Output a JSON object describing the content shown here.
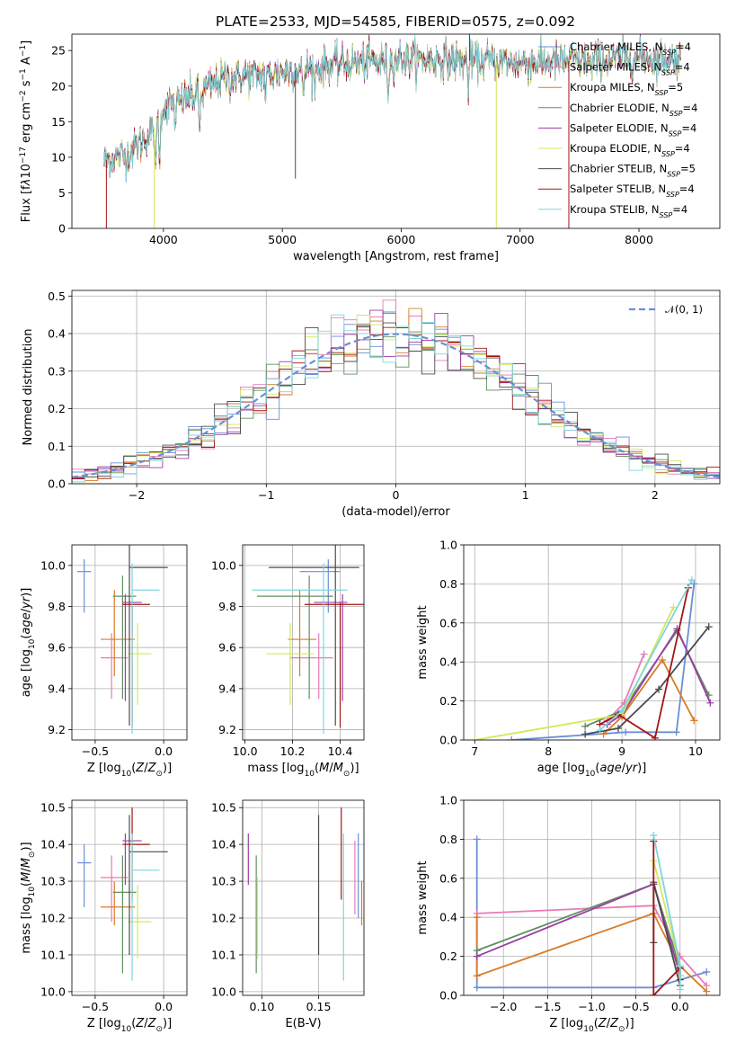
{
  "figure_title": "PLATE=2533, MJD=54585, FIBERID=0575, z=0.092",
  "models": [
    {
      "name": "Chabrier MILES",
      "nssp": "4",
      "color": "#6a8ed8"
    },
    {
      "name": "Salpeter MILES",
      "nssp": "4",
      "color": "#e77bb5"
    },
    {
      "name": "Kroupa MILES",
      "nssp": "5",
      "color": "#d97b28"
    },
    {
      "name": "Chabrier ELODIE",
      "nssp": "4",
      "color": "#5f8f5f"
    },
    {
      "name": "Salpeter ELODIE",
      "nssp": "4",
      "color": "#9b3ea6"
    },
    {
      "name": "Kroupa ELODIE",
      "nssp": "4",
      "color": "#d4e85a"
    },
    {
      "name": "Chabrier STELIB",
      "nssp": "5",
      "color": "#4c4c4c"
    },
    {
      "name": "Salpeter STELIB",
      "nssp": "4",
      "color": "#a31515"
    },
    {
      "name": "Kroupa STELIB",
      "nssp": "4",
      "color": "#7fd6dc"
    }
  ],
  "chart_data": [
    {
      "id": "spectrum",
      "type": "line",
      "xlabel": "wavelength [Angstrom, rest frame]",
      "ylabel_html": "Flux [f<tspan font-style=\"italic\">λ</tspan>10<tspan baseline-shift=\"super\" font-size=\"9\">−17</tspan> erg cm<tspan baseline-shift=\"super\" font-size=\"9\">−2</tspan> s<tspan baseline-shift=\"super\" font-size=\"9\">−1</tspan> A<tspan baseline-shift=\"super\" font-size=\"9\">−1</tspan>]",
      "xlim": [
        3230,
        8680
      ],
      "ylim": [
        0,
        27.3
      ],
      "xticks": [
        4000,
        5000,
        6000,
        7000,
        8000
      ],
      "yticks": [
        0,
        5,
        10,
        15,
        20,
        25
      ],
      "grid": false,
      "legend": "upper right",
      "continuum": [
        [
          3500,
          9.5
        ],
        [
          3700,
          10.5
        ],
        [
          3900,
          13.5
        ],
        [
          4000,
          17.0
        ],
        [
          4300,
          19.0
        ],
        [
          4500,
          21.0
        ],
        [
          5000,
          22.0
        ],
        [
          5500,
          23.2
        ],
        [
          6000,
          23.7
        ],
        [
          6500,
          23.6
        ],
        [
          7000,
          23.3
        ],
        [
          7500,
          23.5
        ],
        [
          8000,
          24.0
        ],
        [
          8350,
          23.8
        ]
      ],
      "absorption_lines": [
        [
          3934,
          7.5
        ],
        [
          3969,
          6.5
        ],
        [
          4102,
          4.0
        ],
        [
          4304,
          5.5
        ],
        [
          4861,
          3.5
        ],
        [
          5175,
          5.0
        ],
        [
          5270,
          3.0
        ],
        [
          5890,
          4.5
        ],
        [
          6563,
          3.5
        ],
        [
          7600,
          2.5
        ]
      ],
      "artifacts": [
        {
          "model": 7,
          "x": 3520,
          "y": 0
        },
        {
          "model": 2,
          "x": 7410,
          "y": 0
        },
        {
          "model": 5,
          "x": 6800,
          "y": 0
        },
        {
          "model": 7,
          "x": 7410,
          "y": 0
        },
        {
          "model": 5,
          "x": 3922,
          "y": 0
        },
        {
          "model": 6,
          "x": 5110,
          "y": 7
        },
        {
          "model": 6,
          "x": 6575,
          "y": 27.3
        }
      ]
    },
    {
      "id": "residuals",
      "type": "histogram",
      "xlabel": "(data-model)/error",
      "ylabel": "Normed distribution",
      "xlim": [
        -2.5,
        2.5
      ],
      "ylim": [
        0,
        0.515
      ],
      "xticks": [
        -2,
        -1,
        0,
        1,
        2
      ],
      "yticks": [
        0.0,
        0.1,
        0.2,
        0.3,
        0.4,
        0.5
      ],
      "grid": true,
      "bin_width": 0.1,
      "normal_curve_label": "𝒩(0, 1)",
      "normal_curve_color": "#6a8ed8",
      "legend": "upper right"
    },
    {
      "id": "age-vs-Z",
      "type": "errorbar",
      "xlabel_html": "Z [log<tspan baseline-shift=\"sub\" font-size=\"9\">10</tspan>(<tspan font-style=\"italic\">Z</tspan>/<tspan font-style=\"italic\">Z</tspan><tspan baseline-shift=\"sub\" font-size=\"9\">⊙</tspan>)]",
      "ylabel_html": "age  [log<tspan baseline-shift=\"sub\" font-size=\"9\">10</tspan>(<tspan font-style=\"italic\">age</tspan>/<tspan font-style=\"italic\">yr</tspan>)]",
      "xlim": [
        -0.67,
        0.17
      ],
      "ylim": [
        9.15,
        10.1
      ],
      "xticks": [
        -0.5,
        0.0
      ],
      "yticks": [
        9.2,
        9.4,
        9.6,
        9.8,
        10.0
      ],
      "grid": true
    },
    {
      "id": "age-vs-mass",
      "type": "errorbar",
      "xlabel_html": "mass [log<tspan baseline-shift=\"sub\" font-size=\"9\">10</tspan>(<tspan font-style=\"italic\">M</tspan>/<tspan font-style=\"italic\">M</tspan><tspan baseline-shift=\"sub\" font-size=\"9\">⊙</tspan>)]",
      "xlim": [
        9.99,
        10.5
      ],
      "ylim": [
        9.15,
        10.1
      ],
      "xticks": [
        10.0,
        10.2,
        10.4
      ],
      "yticks": [
        9.2,
        9.4,
        9.6,
        9.8,
        10.0
      ],
      "grid": true
    },
    {
      "id": "mass-weight-vs-age",
      "type": "line",
      "xlabel_html": "age  [log<tspan baseline-shift=\"sub\" font-size=\"9\">10</tspan>(<tspan font-style=\"italic\">age</tspan>/<tspan font-style=\"italic\">yr</tspan>)]",
      "ylabel": "mass weight",
      "xlim": [
        6.85,
        10.33
      ],
      "ylim": [
        0,
        1.0
      ],
      "xticks": [
        7,
        8,
        9,
        10
      ],
      "yticks": [
        0.0,
        0.2,
        0.4,
        0.6,
        0.8,
        1.0
      ],
      "grid": true
    },
    {
      "id": "mass-vs-Z",
      "type": "errorbar",
      "xlabel_html": "Z [log<tspan baseline-shift=\"sub\" font-size=\"9\">10</tspan>(<tspan font-style=\"italic\">Z</tspan>/<tspan font-style=\"italic\">Z</tspan><tspan baseline-shift=\"sub\" font-size=\"9\">⊙</tspan>)]",
      "ylabel_html": "mass [log<tspan baseline-shift=\"sub\" font-size=\"9\">10</tspan>(<tspan font-style=\"italic\">M</tspan>/<tspan font-style=\"italic\">M</tspan><tspan baseline-shift=\"sub\" font-size=\"9\">⊙</tspan>)]",
      "xlim": [
        -0.67,
        0.17
      ],
      "ylim": [
        9.99,
        10.52
      ],
      "xticks": [
        -0.5,
        0.0
      ],
      "yticks": [
        10.0,
        10.1,
        10.2,
        10.3,
        10.4,
        10.5
      ],
      "grid": true
    },
    {
      "id": "mass-vs-EBV",
      "type": "errorbar",
      "xlabel": "E(B-V)",
      "xlim": [
        0.083,
        0.19
      ],
      "ylim": [
        9.99,
        10.52
      ],
      "xticks": [
        0.1,
        0.15
      ],
      "yticks": [
        10.0,
        10.1,
        10.2,
        10.3,
        10.4,
        10.5
      ],
      "grid": true
    },
    {
      "id": "mass-weight-vs-Z",
      "type": "line",
      "xlabel_html": "Z [log<tspan baseline-shift=\"sub\" font-size=\"9\">10</tspan>(<tspan font-style=\"italic\">Z</tspan>/<tspan font-style=\"italic\">Z</tspan><tspan baseline-shift=\"sub\" font-size=\"9\">⊙</tspan>)]",
      "ylabel": "mass weight",
      "xlim": [
        -2.45,
        0.45
      ],
      "ylim": [
        0,
        1.0
      ],
      "xticks": [
        -2.0,
        -1.5,
        -1.0,
        -0.5,
        0.0
      ],
      "yticks": [
        0.0,
        0.2,
        0.4,
        0.6,
        0.8,
        1.0
      ],
      "grid": true
    }
  ],
  "properties": [
    {
      "Z": -0.58,
      "Zlo": 0.05,
      "Zhi": 0.05,
      "age": 9.97,
      "agelo": 0.2,
      "agehi": 0.06,
      "mass": 10.35,
      "masslo": 0.12,
      "masshi": 0.05,
      "ebv": 0.185,
      "ebvlo": 0.0,
      "ebvhi": 0.0,
      "ebvmlo": 0.15,
      "ebvmhi": 0.08
    },
    {
      "Z": -0.38,
      "Zlo": 0.08,
      "Zhi": 0.12,
      "age": 9.55,
      "agelo": 0.2,
      "agehi": 0.12,
      "mass": 10.31,
      "masslo": 0.12,
      "masshi": 0.06,
      "ebv": 0.182,
      "ebvlo": 0.0,
      "ebvhi": 0.0,
      "ebvmlo": 0.1,
      "ebvmhi": 0.1
    },
    {
      "Z": -0.36,
      "Zlo": 0.1,
      "Zhi": 0.15,
      "age": 9.64,
      "agelo": 0.18,
      "agehi": 0.24,
      "mass": 10.23,
      "masslo": 0.05,
      "masshi": 0.07,
      "ebv": 0.188,
      "ebvlo": 0.0,
      "ebvhi": 0.0,
      "ebvmlo": 0.05,
      "ebvmhi": 0.07
    },
    {
      "Z": -0.3,
      "Zlo": 0.07,
      "Zhi": 0.1,
      "age": 9.85,
      "agelo": 0.5,
      "agehi": 0.1,
      "mass": 10.27,
      "masslo": 0.22,
      "masshi": 0.1,
      "ebv": 0.095,
      "ebvlo": 0.0,
      "ebvhi": 0.0,
      "ebvmlo": 0.22,
      "ebvmhi": 0.1
    },
    {
      "Z": -0.28,
      "Zlo": 0.02,
      "Zhi": 0.12,
      "age": 9.82,
      "agelo": 0.48,
      "agehi": 0.04,
      "mass": 10.41,
      "masslo": 0.12,
      "masshi": 0.02,
      "ebv": 0.088,
      "ebvlo": 0.0,
      "ebvhi": 0.0,
      "ebvmlo": 0.12,
      "ebvmhi": 0.02
    },
    {
      "Z": -0.19,
      "Zlo": 0.07,
      "Zhi": 0.1,
      "age": 9.57,
      "agelo": 0.25,
      "agehi": 0.15,
      "mass": 10.19,
      "masslo": 0.1,
      "masshi": 0.1,
      "ebv": 0.096,
      "ebvlo": 0.0,
      "ebvhi": 0.0,
      "ebvmlo": 0.1,
      "ebvmhi": 0.12
    },
    {
      "Z": -0.25,
      "Zlo": 0.0,
      "Zhi": 0.28,
      "age": 9.99,
      "agelo": 0.77,
      "agehi": 0.13,
      "mass": 10.38,
      "masslo": 0.28,
      "masshi": 0.1,
      "ebv": 0.15,
      "ebvlo": 0.0,
      "ebvhi": 0.0,
      "ebvmlo": 0.28,
      "ebvmhi": 0.1
    },
    {
      "Z": -0.23,
      "Zlo": 0.07,
      "Zhi": 0.13,
      "age": 9.81,
      "agelo": 0.6,
      "agehi": 0.01,
      "mass": 10.4,
      "masslo": 0.15,
      "masshi": 0.1,
      "ebv": 0.17,
      "ebvlo": 0.0,
      "ebvhi": 0.0,
      "ebvmlo": 0.15,
      "ebvmhi": 0.1
    },
    {
      "Z": -0.23,
      "Zlo": 0.0,
      "Zhi": 0.2,
      "age": 9.88,
      "agelo": 0.7,
      "agehi": 0.13,
      "mass": 10.33,
      "masslo": 0.3,
      "masshi": 0.1,
      "ebv": 0.172,
      "ebvlo": 0.0,
      "ebvhi": 0.0,
      "ebvmlo": 0.3,
      "ebvmhi": 0.1
    }
  ],
  "weights_age": [
    [
      [
        9.98,
        0.8
      ],
      [
        9.74,
        0.04
      ],
      [
        9.05,
        0.04
      ],
      [
        7.5,
        0.0
      ]
    ],
    [
      [
        9.3,
        0.44
      ],
      [
        9.03,
        0.19
      ],
      [
        8.8,
        0.1
      ]
    ],
    [
      [
        9.98,
        0.1
      ],
      [
        9.55,
        0.41
      ],
      [
        9.0,
        0.12
      ],
      [
        8.75,
        0.03
      ]
    ],
    [
      [
        10.18,
        0.23
      ],
      [
        9.75,
        0.56
      ],
      [
        9.0,
        0.15
      ],
      [
        8.5,
        0.07
      ]
    ],
    [
      [
        10.2,
        0.19
      ],
      [
        9.75,
        0.57
      ],
      [
        9.0,
        0.13
      ],
      [
        8.8,
        0.08
      ]
    ],
    [
      [
        9.7,
        0.68
      ],
      [
        9.0,
        0.13
      ],
      [
        7.0,
        0.0
      ]
    ],
    [
      [
        10.18,
        0.58
      ],
      [
        9.5,
        0.26
      ],
      [
        8.95,
        0.06
      ],
      [
        8.5,
        0.03
      ]
    ],
    [
      [
        9.9,
        0.78
      ],
      [
        9.45,
        0.01
      ],
      [
        8.95,
        0.13
      ],
      [
        8.7,
        0.08
      ]
    ],
    [
      [
        9.95,
        0.82
      ],
      [
        9.0,
        0.15
      ],
      [
        8.7,
        0.05
      ]
    ]
  ],
  "weights_Z": [
    [
      [
        -2.3,
        0.8
      ],
      [
        -2.3,
        0.04
      ],
      [
        -0.3,
        0.04
      ],
      [
        0.3,
        0.12
      ]
    ],
    [
      [
        -2.3,
        0.42
      ],
      [
        -0.3,
        0.46
      ],
      [
        0.0,
        0.2
      ],
      [
        0.3,
        0.05
      ]
    ],
    [
      [
        -2.3,
        0.4
      ],
      [
        -2.3,
        0.1
      ],
      [
        -0.3,
        0.42
      ],
      [
        0.0,
        0.15
      ],
      [
        0.3,
        0.02
      ]
    ],
    [
      [
        -2.3,
        0.23
      ],
      [
        -0.3,
        0.57
      ],
      [
        0.0,
        0.14
      ]
    ],
    [
      [
        -2.3,
        0.2
      ],
      [
        -0.3,
        0.57
      ],
      [
        0.0,
        0.1
      ]
    ],
    [
      [
        -0.3,
        0.69
      ],
      [
        0.0,
        0.15
      ],
      [
        0.0,
        0.1
      ]
    ],
    [
      [
        -0.3,
        0.27
      ],
      [
        -0.3,
        0.58
      ],
      [
        0.0,
        0.05
      ]
    ],
    [
      [
        -0.3,
        0.79
      ],
      [
        -0.3,
        0.0
      ],
      [
        0.0,
        0.14
      ],
      [
        0.0,
        0.08
      ]
    ],
    [
      [
        -0.3,
        0.82
      ],
      [
        0.0,
        0.15
      ],
      [
        0.0,
        0.03
      ]
    ]
  ]
}
